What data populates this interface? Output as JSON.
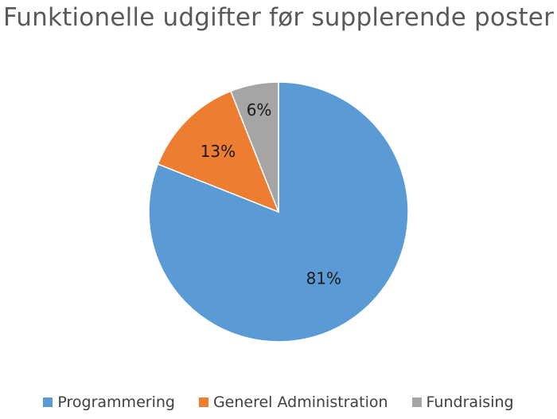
{
  "chart_data": {
    "type": "pie",
    "title": "Funktionelle udgifter før supplerende poster",
    "categories": [
      "Programmering",
      "Generel Administration",
      "Fundraising"
    ],
    "values": [
      81,
      13,
      6
    ],
    "data_labels": [
      "81%",
      "13%",
      "6%"
    ],
    "colors": [
      "#5b9bd5",
      "#ed7d31",
      "#a5a5a5"
    ],
    "start_angle_deg": 0,
    "direction": "clockwise",
    "legend_position": "bottom"
  }
}
